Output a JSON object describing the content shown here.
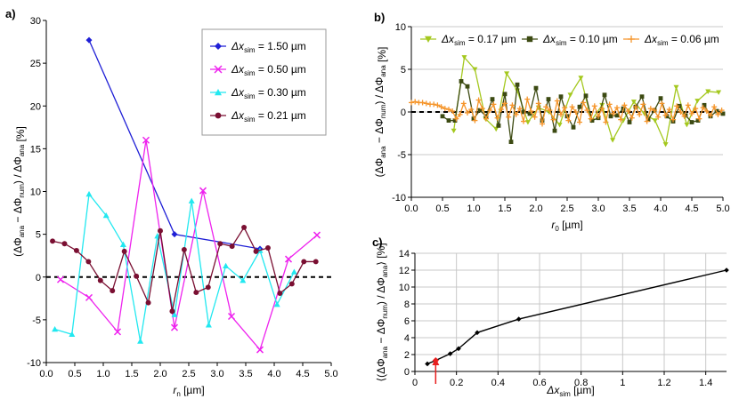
{
  "chart_data": [
    {
      "panel": "a)",
      "type": "line",
      "xlabel": {
        "sym": "r",
        "sub": "n",
        "unit": "[µm]"
      },
      "ylabel": {
        "expr": "(ΔΦ",
        "s1": "ana",
        "minus": " − ΔΦ",
        "s2": "num",
        "mid": ") / ΔΦ",
        "s3": "ana",
        "unit": "[%]"
      },
      "xlim": [
        0,
        5
      ],
      "ylim": [
        -10,
        30
      ],
      "xticks": [
        0,
        0.5,
        1,
        1.5,
        2,
        2.5,
        3,
        3.5,
        4,
        4.5,
        5
      ],
      "xtick_labels": [
        "0.0",
        "0.5",
        "1.0",
        "1.5",
        "2.0",
        "2.5",
        "3.0",
        "3.5",
        "4.0",
        "4.5",
        "5.0"
      ],
      "yticks": [
        -10,
        -5,
        0,
        5,
        10,
        15,
        20,
        25,
        30
      ],
      "ytick_labels": [
        "-10",
        "-5",
        "0",
        "5",
        "10",
        "15",
        "20",
        "25",
        "30"
      ],
      "legend": "top-right",
      "series": [
        {
          "label": {
            "pre": "Δx",
            "sub": "sim",
            "post": " = 1.50 µm"
          },
          "color": "#1f1fd6",
          "marker": "diamond",
          "x": [
            0.75,
            2.25,
            3.75
          ],
          "y": [
            27.7,
            5.0,
            3.3
          ]
        },
        {
          "label": {
            "pre": "Δx",
            "sub": "sim",
            "post": " = 0.50 µm"
          },
          "color": "#ee22ee",
          "marker": "x",
          "x": [
            0.25,
            0.75,
            1.25,
            1.75,
            2.25,
            2.75,
            3.25,
            3.75,
            4.25,
            4.75
          ],
          "y": [
            -0.3,
            -2.4,
            -6.4,
            16.0,
            -5.9,
            10.1,
            -4.6,
            -8.5,
            2.1,
            4.9
          ]
        },
        {
          "label": {
            "pre": "Δx",
            "sub": "sim",
            "post": " = 0.30 µm"
          },
          "color": "#22e8f0",
          "marker": "triangle",
          "x": [
            0.15,
            0.45,
            0.75,
            1.05,
            1.35,
            1.65,
            1.95,
            2.25,
            2.55,
            2.85,
            3.15,
            3.45,
            3.75,
            4.05,
            4.35
          ],
          "y": [
            -6.1,
            -6.7,
            9.7,
            7.2,
            3.8,
            -7.5,
            4.8,
            -4.4,
            8.9,
            -5.6,
            1.3,
            -0.4,
            3.1,
            -3.2,
            0.6
          ]
        },
        {
          "label": {
            "pre": "Δx",
            "sub": "sim",
            "post": " = 0.21 µm"
          },
          "color": "#7a0f32",
          "marker": "circle",
          "x": [
            0.11,
            0.32,
            0.53,
            0.74,
            0.95,
            1.16,
            1.37,
            1.58,
            1.79,
            2.0,
            2.21,
            2.42,
            2.63,
            2.84,
            3.05,
            3.26,
            3.47,
            3.68,
            3.89,
            4.1,
            4.31,
            4.52,
            4.73
          ],
          "y": [
            4.2,
            3.9,
            3.1,
            1.8,
            -0.4,
            -1.6,
            3.0,
            0.1,
            -3.0,
            5.4,
            -4.0,
            3.2,
            -1.8,
            -1.2,
            3.9,
            3.6,
            5.8,
            3.0,
            3.4,
            -1.9,
            -0.8,
            1.8,
            1.8
          ]
        }
      ]
    },
    {
      "panel": "b)",
      "type": "line",
      "xlabel": {
        "sym": "r",
        "sub": "0",
        "unit": "[µm]"
      },
      "ylabel": {
        "expr": "(ΔΦ",
        "s1": "ana",
        "minus": " − ΔΦ",
        "s2": "num",
        "mid": ") / ΔΦ",
        "s3": "ana",
        "unit": "[%]"
      },
      "xlim": [
        0,
        5
      ],
      "ylim": [
        -10,
        10
      ],
      "xticks": [
        0,
        0.5,
        1,
        1.5,
        2,
        2.5,
        3,
        3.5,
        4,
        4.5,
        5
      ],
      "xtick_labels": [
        "0.0",
        "0.5",
        "1.0",
        "1.5",
        "2.0",
        "2.5",
        "3.0",
        "3.5",
        "4.0",
        "4.5",
        "5.0"
      ],
      "yticks": [
        -10,
        -5,
        0,
        5,
        10
      ],
      "ytick_labels": [
        "-10",
        "-5",
        "0",
        "5",
        "10"
      ],
      "legend": "top",
      "series": [
        {
          "label": {
            "pre": "Δx",
            "sub": "sim",
            "post": " = 0.17 µm"
          },
          "color": "#a4c81e",
          "marker": "triangle-down",
          "x": [
            0.68,
            0.85,
            1.02,
            1.19,
            1.36,
            1.53,
            1.7,
            1.87,
            2.04,
            2.21,
            2.38,
            2.55,
            2.72,
            2.89,
            3.06,
            3.23,
            3.4,
            3.57,
            3.74,
            3.91,
            4.08,
            4.25,
            4.42,
            4.59,
            4.76,
            4.93
          ],
          "y": [
            -2.2,
            6.4,
            5.0,
            -0.8,
            -2.0,
            4.5,
            2.5,
            -1.2,
            0.5,
            0.0,
            -1.5,
            2.0,
            4.0,
            -1.0,
            0.8,
            -3.3,
            -1.0,
            1.2,
            -0.2,
            -1.0,
            -3.8,
            2.9,
            -1.5,
            1.3,
            2.4,
            2.3
          ]
        },
        {
          "label": {
            "pre": "Δx",
            "sub": "sim",
            "post": " = 0.10 µm"
          },
          "color": "#3c4a12",
          "marker": "square",
          "x": [
            0.5,
            0.6,
            0.7,
            0.8,
            0.9,
            1.0,
            1.1,
            1.2,
            1.3,
            1.4,
            1.5,
            1.6,
            1.7,
            1.8,
            1.9,
            2.0,
            2.1,
            2.2,
            2.3,
            2.4,
            2.5,
            2.6,
            2.7,
            2.8,
            2.9,
            3.0,
            3.1,
            3.2,
            3.3,
            3.4,
            3.5,
            3.6,
            3.7,
            3.8,
            3.9,
            4.0,
            4.1,
            4.2,
            4.3,
            4.4,
            4.5,
            4.6,
            4.7,
            4.8,
            4.9,
            5.0
          ],
          "y": [
            -0.5,
            -1.0,
            -1.0,
            3.6,
            3.0,
            -0.8,
            0.2,
            -0.5,
            1.5,
            -1.6,
            2.1,
            -3.5,
            3.2,
            0.0,
            -0.2,
            2.8,
            -1.0,
            1.5,
            -2.2,
            1.8,
            -0.5,
            -1.8,
            0.6,
            1.9,
            -1.0,
            -0.7,
            2.0,
            -0.5,
            -0.4,
            0.4,
            -1.2,
            0.6,
            1.8,
            -0.9,
            0.2,
            1.6,
            -0.5,
            -1.1,
            0.7,
            -0.4,
            -1.2,
            -1.0,
            0.8,
            -0.5,
            0.1,
            -0.2
          ]
        },
        {
          "label": {
            "pre": "Δx",
            "sub": "sim",
            "post": " = 0.06 µm"
          },
          "color": "#f5952a",
          "marker": "plus",
          "x": [
            0.0,
            0.06,
            0.12,
            0.18,
            0.24,
            0.3,
            0.36,
            0.42,
            0.48,
            0.54,
            0.6,
            0.66,
            0.72,
            0.78,
            0.84,
            0.9,
            0.96,
            1.02,
            1.08,
            1.14,
            1.2,
            1.26,
            1.32,
            1.38,
            1.44,
            1.5,
            1.56,
            1.62,
            1.68,
            1.74,
            1.8,
            1.86,
            1.92,
            1.98,
            2.04,
            2.1,
            2.16,
            2.22,
            2.28,
            2.34,
            2.4,
            2.46,
            2.52,
            2.58,
            2.64,
            2.7,
            2.76,
            2.82,
            2.88,
            2.94,
            3.0,
            3.06,
            3.12,
            3.18,
            3.24,
            3.3,
            3.36,
            3.42,
            3.48,
            3.54,
            3.6,
            3.66,
            3.72,
            3.78,
            3.84,
            3.9,
            3.96,
            4.02,
            4.08,
            4.14,
            4.2,
            4.26,
            4.32,
            4.38,
            4.44,
            4.5,
            4.56,
            4.62,
            4.68,
            4.74,
            4.8,
            4.86,
            4.92,
            4.98
          ],
          "y": [
            1.1,
            1.2,
            1.1,
            1.1,
            1.0,
            0.9,
            0.9,
            0.8,
            0.6,
            0.4,
            0.3,
            0.1,
            -0.8,
            -0.3,
            1.0,
            -0.1,
            0.3,
            -1.0,
            1.4,
            0.4,
            -0.8,
            0.2,
            0.9,
            -0.7,
            0.3,
            1.0,
            -0.6,
            0.8,
            -0.3,
            0.4,
            -1.1,
            1.5,
            0.1,
            -0.6,
            1.0,
            -1.4,
            0.6,
            0.2,
            -0.9,
            1.3,
            -0.3,
            0.5,
            -1.0,
            0.6,
            0.0,
            -1.2,
            1.1,
            0.2,
            -0.8,
            0.7,
            -0.5,
            0.4,
            -1.2,
            0.9,
            -0.2,
            0.5,
            -0.9,
            0.8,
            0.1,
            -0.7,
            0.6,
            -0.3,
            0.9,
            -1.1,
            0.4,
            0.2,
            -0.6,
            1.0,
            -0.4,
            0.3,
            -0.9,
            0.7,
            0.0,
            -0.5,
            0.8,
            -0.2,
            0.4,
            -0.8,
            0.5,
            0.1,
            -0.4,
            0.6,
            -0.3,
            0.2
          ]
        }
      ]
    },
    {
      "panel": "c)",
      "type": "line",
      "xlabel": {
        "sym": "Δx",
        "sub": "sim",
        "unit": "[µm]"
      },
      "ylabel": {
        "expr": "⟨(ΔΦ",
        "s1": "ana",
        "minus": " − ΔΦ",
        "s2": "num",
        "mid": ") / ΔΦ",
        "s3": "ana",
        "close": "⟩",
        "unit": "[%]"
      },
      "xlim": [
        0,
        1.5
      ],
      "ylim": [
        0,
        14
      ],
      "xticks": [
        0,
        0.2,
        0.4,
        0.6,
        0.8,
        1.0,
        1.2,
        1.4
      ],
      "xtick_labels": [
        "0",
        "0.2",
        "0.4",
        "0.6",
        "0.8",
        "1",
        "1.2",
        "1.4"
      ],
      "yticks": [
        0,
        2,
        4,
        6,
        8,
        10,
        12,
        14
      ],
      "ytick_labels": [
        "0",
        "2",
        "4",
        "6",
        "8",
        "10",
        "12",
        "14"
      ],
      "series": [
        {
          "color": "#000000",
          "marker": "diamond",
          "x": [
            0.06,
            0.1,
            0.17,
            0.21,
            0.3,
            0.5,
            1.5
          ],
          "y": [
            0.9,
            1.3,
            2.1,
            2.7,
            4.6,
            6.2,
            12.0
          ]
        }
      ],
      "highlight": {
        "x": 0.1,
        "y": 1.3,
        "color": "#e81e1e"
      },
      "arrow_color": "#e81e1e"
    }
  ]
}
